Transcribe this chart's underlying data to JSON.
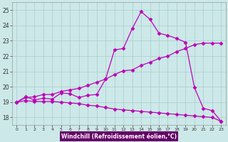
{
  "xlabel": "Windchill (Refroidissement éolien,°C)",
  "bg_color": "#cce8e8",
  "plot_bg_color": "#cce8e8",
  "line_color": "#bb00bb",
  "grid_color": "#aacccc",
  "xlabel_bg": "#660066",
  "xlabel_fg": "#ffffff",
  "xlim": [
    -0.5,
    23.5
  ],
  "ylim": [
    17.5,
    25.5
  ],
  "xticks": [
    0,
    1,
    2,
    3,
    4,
    5,
    6,
    7,
    8,
    9,
    10,
    11,
    12,
    13,
    14,
    15,
    16,
    17,
    18,
    19,
    20,
    21,
    22,
    23
  ],
  "yticks": [
    18,
    19,
    20,
    21,
    22,
    23,
    24,
    25
  ],
  "line1_x": [
    0,
    1,
    2,
    3,
    4,
    5,
    6,
    7,
    8,
    9,
    10,
    11,
    12,
    13,
    14,
    15,
    16,
    17,
    18,
    19,
    20,
    21,
    22,
    23
  ],
  "line1_y": [
    19.0,
    19.35,
    19.15,
    19.25,
    19.2,
    19.6,
    19.55,
    19.3,
    19.45,
    19.5,
    20.5,
    22.4,
    22.5,
    23.8,
    24.9,
    24.4,
    23.5,
    23.35,
    23.15,
    22.9,
    19.95,
    18.6,
    18.45,
    17.75
  ],
  "line2_x": [
    0,
    1,
    2,
    3,
    4,
    5,
    6,
    7,
    8,
    9,
    10,
    11,
    12,
    13,
    14,
    15,
    16,
    17,
    18,
    19,
    20,
    21,
    22,
    23
  ],
  "line2_y": [
    19.0,
    19.3,
    19.35,
    19.5,
    19.5,
    19.7,
    19.8,
    19.9,
    20.1,
    20.3,
    20.5,
    20.8,
    21.05,
    21.1,
    21.4,
    21.6,
    21.85,
    22.0,
    22.3,
    22.5,
    22.75,
    22.85,
    22.85,
    22.85
  ],
  "line3_x": [
    0,
    1,
    2,
    3,
    4,
    5,
    6,
    7,
    8,
    9,
    10,
    11,
    12,
    13,
    14,
    15,
    16,
    17,
    18,
    19,
    20,
    21,
    22,
    23
  ],
  "line3_y": [
    19.0,
    19.1,
    19.05,
    19.05,
    19.05,
    19.0,
    18.95,
    18.9,
    18.8,
    18.75,
    18.65,
    18.55,
    18.5,
    18.45,
    18.4,
    18.35,
    18.3,
    18.25,
    18.2,
    18.15,
    18.1,
    18.05,
    18.0,
    17.75
  ],
  "marker": "D",
  "markersize": 2.5,
  "linewidth": 0.9
}
